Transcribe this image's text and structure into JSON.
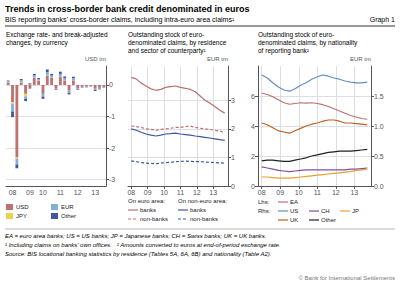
{
  "title": "Trends in cross-border bank credit denominated in euros",
  "subtitle": "BIS reporting banks’ cross-border claims, including intra-euro area claims¹",
  "annotations": [
    "Graph 1",
    "EA = euro area banks; US = US banks; JP = Japanese banks; CH = Swiss banks; UK = UK banks.",
    "¹ Including claims on banks’ own offices.   ² Amounts converted to euros at end-of-period exchange rate.",
    "Source: BIS locational banking statistics by residence (Tables 5A, 6A, 6B) and nationality (Table A2).",
    "© Bank for International Settlements"
  ],
  "chart_data": [
    {
      "type": "bar",
      "title": "Exchange rate- and break-adjusted\nchanges, by currency",
      "ylabel": "USD tm",
      "categories": [
        null,
        "08",
        null,
        null,
        null,
        "09",
        null,
        null,
        "10",
        null,
        null,
        null,
        "11",
        null,
        null,
        null,
        "12",
        null,
        null,
        null,
        "13",
        null,
        null
      ],
      "stacked": true,
      "ylim": [
        -3.2,
        0.6
      ],
      "yticks": [
        0,
        -1,
        -2,
        -3
      ],
      "grid": "y",
      "legend": "bottom left",
      "series": [
        {
          "name": "USD",
          "color": "#bf7070",
          "values": [
            0.08,
            -0.55,
            -2.3,
            0.08,
            -0.28,
            -0.12,
            0.22,
            0.14,
            -0.28,
            0.3,
            0.22,
            -0.1,
            0.25,
            0.14,
            -0.18,
            0.14,
            -0.1,
            -0.06,
            -0.05,
            -0.03,
            -0.12,
            -0.09,
            -0.06
          ]
        },
        {
          "name": "JPY",
          "color": "#e8d44d",
          "values": [
            0.01,
            -0.04,
            -0.04,
            0.01,
            -0.08,
            0.0,
            0.01,
            0.01,
            0.0,
            0.01,
            0.01,
            0.0,
            0.01,
            0.01,
            0.0,
            0.0,
            0.0,
            0.0,
            0.0,
            0.0,
            0.0,
            0.0,
            0.0
          ]
        },
        {
          "name": "EUR",
          "color": "#80b0d8",
          "values": [
            0.03,
            -0.25,
            -0.18,
            0.06,
            -0.08,
            0.04,
            0.07,
            0.04,
            -0.09,
            0.1,
            0.07,
            -0.04,
            0.09,
            0.07,
            -0.07,
            0.07,
            -0.03,
            -0.02,
            -0.02,
            -0.01,
            -0.04,
            -0.03,
            -0.02
          ]
        },
        {
          "name": "Other",
          "color": "#4455a0",
          "values": [
            0.02,
            -0.18,
            -0.12,
            0.04,
            -0.07,
            0.02,
            0.05,
            0.03,
            -0.07,
            0.08,
            0.05,
            -0.02,
            0.07,
            0.05,
            -0.05,
            0.05,
            -0.02,
            -0.01,
            -0.01,
            -0.01,
            -0.03,
            -0.02,
            -0.01
          ]
        }
      ]
    },
    {
      "type": "line",
      "title": "Outstanding stock of euro-\ndenominated claims, by residence\nand sector of counterparty¹",
      "ylabel": "EUR tm",
      "x": [
        2008.0,
        2008.3,
        2008.6,
        2008.9,
        2009.2,
        2009.5,
        2009.8,
        2010.1,
        2010.4,
        2010.7,
        2011.0,
        2011.3,
        2011.6,
        2011.9,
        2012.2,
        2012.5,
        2012.8,
        2013.1,
        2013.4,
        2013.7
      ],
      "xlim": [
        2007.8,
        2013.9
      ],
      "xticks": [
        {
          "value": 2008,
          "label": "08"
        },
        {
          "value": 2009,
          "label": "09"
        },
        {
          "value": 2010,
          "label": "10"
        },
        {
          "value": 2011,
          "label": "11"
        },
        {
          "value": 2012,
          "label": "12"
        },
        {
          "value": 2013,
          "label": "13"
        }
      ],
      "ylim": [
        0,
        4.2
      ],
      "yticks": [
        0,
        1,
        2,
        3
      ],
      "grid": true,
      "legend": "bottom left",
      "annotations": [
        "On euro area:",
        "On non-euro area:"
      ],
      "series": [
        {
          "name": "banks",
          "color": "#bf7070",
          "line_style": "solid",
          "values": [
            3.8,
            3.75,
            3.6,
            3.5,
            3.4,
            3.35,
            3.38,
            3.45,
            3.48,
            3.5,
            3.45,
            3.42,
            3.38,
            3.3,
            3.15,
            3.0,
            2.9,
            2.78,
            2.65,
            2.55
          ]
        },
        {
          "name": "non-banks",
          "color": "#bf7070",
          "line_style": "dashed",
          "values": [
            2.1,
            2.08,
            2.05,
            2.0,
            1.98,
            1.95,
            1.98,
            2.0,
            2.02,
            2.05,
            2.05,
            2.08,
            2.1,
            2.05,
            2.02,
            2.0,
            1.98,
            1.95,
            1.92,
            1.88
          ]
        },
        {
          "name": "banks",
          "color": "#4455a0",
          "line_style": "solid",
          "values": [
            2.0,
            1.95,
            1.88,
            1.82,
            1.78,
            1.75,
            1.78,
            1.82,
            1.83,
            1.85,
            1.82,
            1.8,
            1.78,
            1.75,
            1.73,
            1.7,
            1.68,
            1.65,
            1.62,
            1.6
          ]
        },
        {
          "name": "non-banks",
          "color": "#4455a0",
          "line_style": "dashed",
          "values": [
            0.88,
            0.85,
            0.82,
            0.8,
            0.79,
            0.78,
            0.8,
            0.82,
            0.83,
            0.85,
            0.86,
            0.87,
            0.86,
            0.85,
            0.85,
            0.84,
            0.83,
            0.82,
            0.81,
            0.8
          ]
        }
      ]
    },
    {
      "type": "line",
      "title": "Outstanding stock of euro-\ndenominated claims, by nationality\nof reporting bank²",
      "y2label": "EUR tm",
      "x": [
        2008.0,
        2008.3,
        2008.6,
        2008.9,
        2009.2,
        2009.5,
        2009.8,
        2010.1,
        2010.4,
        2010.7,
        2011.0,
        2011.3,
        2011.6,
        2011.9,
        2012.2,
        2012.5,
        2012.8,
        2013.1,
        2013.4,
        2013.7
      ],
      "xlim": [
        2007.8,
        2013.9
      ],
      "xticks": [
        {
          "value": 2008,
          "label": "08"
        },
        {
          "value": 2009,
          "label": "09"
        },
        {
          "value": 2010,
          "label": "10"
        },
        {
          "value": 2011,
          "label": "11"
        },
        {
          "value": 2012,
          "label": "12"
        },
        {
          "value": 2013,
          "label": "13"
        }
      ],
      "ylim": [
        0,
        8
      ],
      "yticks": [
        0,
        2,
        4,
        6
      ],
      "y2lim": [
        0.0,
        2.0
      ],
      "y2ticks": [
        {
          "value": 0.0,
          "label": "0.0"
        },
        0.5,
        {
          "value": 1.0,
          "label": "1.0"
        },
        1.5
      ],
      "grid": true,
      "legend": "bottom left",
      "annotations": [
        "Lhs:",
        "Rhs:"
      ],
      "series": [
        {
          "name": "EA",
          "color": "#bf7070",
          "values": [
            6.2,
            6.1,
            5.95,
            5.75,
            5.55,
            5.45,
            5.5,
            5.55,
            5.52,
            5.55,
            5.5,
            5.42,
            5.3,
            5.15,
            5.0,
            4.85,
            4.7,
            4.6,
            4.5,
            4.45
          ]
        },
        {
          "name": "US",
          "color": "#6090c0",
          "axis": "y2",
          "values": [
            1.85,
            1.8,
            1.72,
            1.65,
            1.6,
            1.58,
            1.62,
            1.68,
            1.72,
            1.78,
            1.82,
            1.85,
            1.83,
            1.8,
            1.78,
            1.75,
            1.73,
            1.72,
            1.72,
            1.73
          ]
        },
        {
          "name": "CH",
          "color": "#8050a0",
          "axis": "y2",
          "values": [
            0.32,
            0.3,
            0.28,
            0.26,
            0.25,
            0.24,
            0.25,
            0.26,
            0.27,
            0.27,
            0.27,
            0.27,
            0.27,
            0.27,
            0.27,
            0.27,
            0.28,
            0.28,
            0.29,
            0.3
          ]
        },
        {
          "name": "JP",
          "color": "#e8a030",
          "axis": "y2",
          "values": [
            0.15,
            0.15,
            0.14,
            0.13,
            0.13,
            0.13,
            0.14,
            0.15,
            0.16,
            0.17,
            0.18,
            0.19,
            0.2,
            0.21,
            0.22,
            0.23,
            0.24,
            0.26,
            0.27,
            0.28
          ]
        },
        {
          "name": "UK",
          "color": "#c06020",
          "axis": "y2",
          "values": [
            1.05,
            1.02,
            0.97,
            0.92,
            0.9,
            0.88,
            0.92,
            0.96,
            1.0,
            1.03,
            1.05,
            1.08,
            1.1,
            1.1,
            1.08,
            1.05,
            1.05,
            1.04,
            1.03,
            1.02
          ]
        },
        {
          "name": "Other",
          "color": "#202020",
          "axis": "y2",
          "values": [
            0.42,
            0.43,
            0.43,
            0.42,
            0.41,
            0.41,
            0.43,
            0.45,
            0.47,
            0.5,
            0.52,
            0.54,
            0.56,
            0.57,
            0.58,
            0.58,
            0.58,
            0.59,
            0.6,
            0.61
          ]
        }
      ]
    }
  ]
}
